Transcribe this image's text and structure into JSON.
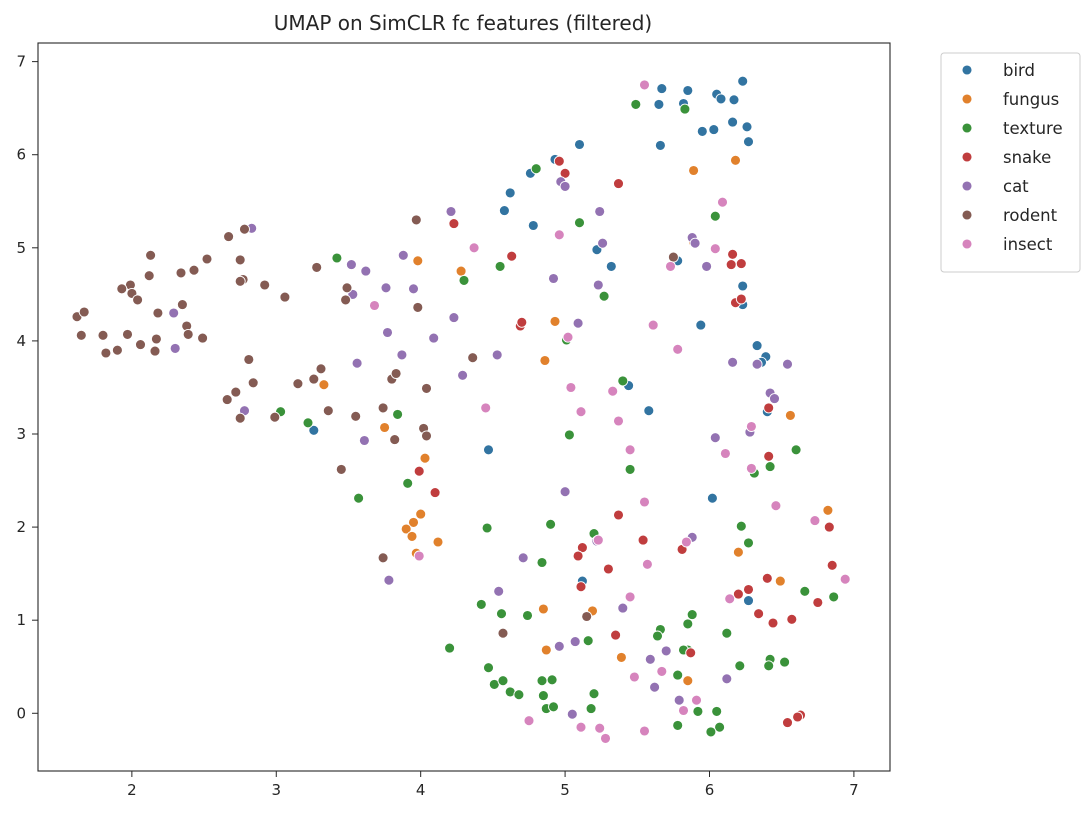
{
  "chart_data": {
    "type": "scatter",
    "title": "UMAP on SimCLR fc features (filtered)",
    "xlabel": "",
    "ylabel": "",
    "xlim": [
      1.35,
      7.25
    ],
    "ylim": [
      -0.62,
      7.2
    ],
    "x_ticks": [
      2,
      3,
      4,
      5,
      6,
      7
    ],
    "y_ticks": [
      0,
      1,
      2,
      3,
      4,
      5,
      6,
      7
    ],
    "grid": false,
    "legend_position": "outside top-right",
    "series": [
      {
        "name": "bird",
        "color": "#3274a1",
        "points": [
          [
            5.67,
            6.71
          ],
          [
            5.85,
            6.69
          ],
          [
            6.05,
            6.65
          ],
          [
            6.23,
            6.79
          ],
          [
            5.65,
            6.54
          ],
          [
            5.82,
            6.55
          ],
          [
            6.08,
            6.6
          ],
          [
            6.17,
            6.59
          ],
          [
            6.16,
            6.35
          ],
          [
            5.95,
            6.25
          ],
          [
            6.03,
            6.27
          ],
          [
            6.26,
            6.3
          ],
          [
            5.66,
            6.1
          ],
          [
            6.27,
            6.14
          ],
          [
            5.1,
            6.11
          ],
          [
            4.93,
            5.95
          ],
          [
            4.76,
            5.8
          ],
          [
            4.62,
            5.59
          ],
          [
            4.58,
            5.4
          ],
          [
            4.78,
            5.24
          ],
          [
            5.22,
            4.98
          ],
          [
            5.32,
            4.8
          ],
          [
            5.78,
            4.86
          ],
          [
            6.23,
            4.59
          ],
          [
            6.23,
            4.39
          ],
          [
            5.94,
            4.17
          ],
          [
            6.33,
            3.95
          ],
          [
            6.39,
            3.83
          ],
          [
            6.36,
            3.77
          ],
          [
            5.44,
            3.52
          ],
          [
            5.58,
            3.25
          ],
          [
            6.4,
            3.24
          ],
          [
            4.47,
            2.83
          ],
          [
            6.02,
            2.31
          ],
          [
            3.26,
            3.04
          ],
          [
            5.12,
            1.42
          ],
          [
            6.27,
            1.21
          ]
        ]
      },
      {
        "name": "fungus",
        "color": "#e1812c",
        "points": [
          [
            6.18,
            5.94
          ],
          [
            5.89,
            5.83
          ],
          [
            5.89,
            5.06
          ],
          [
            3.98,
            4.86
          ],
          [
            4.28,
            4.75
          ],
          [
            4.93,
            4.21
          ],
          [
            4.86,
            3.79
          ],
          [
            3.33,
            3.53
          ],
          [
            3.75,
            3.07
          ],
          [
            4.03,
            2.74
          ],
          [
            3.95,
            2.05
          ],
          [
            4.0,
            2.14
          ],
          [
            3.9,
            1.98
          ],
          [
            3.94,
            1.9
          ],
          [
            4.12,
            1.84
          ],
          [
            3.97,
            1.72
          ],
          [
            6.56,
            3.2
          ],
          [
            6.82,
            2.18
          ],
          [
            6.2,
            1.73
          ],
          [
            6.49,
            1.42
          ],
          [
            4.85,
            1.12
          ],
          [
            5.19,
            1.1
          ],
          [
            4.87,
            0.68
          ],
          [
            5.39,
            0.6
          ],
          [
            5.85,
            0.35
          ]
        ]
      },
      {
        "name": "texture",
        "color": "#3a923a",
        "points": [
          [
            5.49,
            6.54
          ],
          [
            5.83,
            6.49
          ],
          [
            4.8,
            5.85
          ],
          [
            5.1,
            5.27
          ],
          [
            6.04,
            5.34
          ],
          [
            3.42,
            4.89
          ],
          [
            4.55,
            4.8
          ],
          [
            4.3,
            4.65
          ],
          [
            5.27,
            4.48
          ],
          [
            5.01,
            4.01
          ],
          [
            5.4,
            3.57
          ],
          [
            3.03,
            3.24
          ],
          [
            3.84,
            3.21
          ],
          [
            3.22,
            3.12
          ],
          [
            5.03,
            2.99
          ],
          [
            6.6,
            2.83
          ],
          [
            6.42,
            2.65
          ],
          [
            5.45,
            2.62
          ],
          [
            6.31,
            2.58
          ],
          [
            3.91,
            2.47
          ],
          [
            3.57,
            2.31
          ],
          [
            4.9,
            2.03
          ],
          [
            4.46,
            1.99
          ],
          [
            5.2,
            1.93
          ],
          [
            6.22,
            2.01
          ],
          [
            6.27,
            1.83
          ],
          [
            4.84,
            1.62
          ],
          [
            6.66,
            1.31
          ],
          [
            6.86,
            1.25
          ],
          [
            4.42,
            1.17
          ],
          [
            4.56,
            1.07
          ],
          [
            4.74,
            1.05
          ],
          [
            5.88,
            1.06
          ],
          [
            5.16,
            0.78
          ],
          [
            5.66,
            0.9
          ],
          [
            5.64,
            0.83
          ],
          [
            6.12,
            0.86
          ],
          [
            5.85,
            0.96
          ],
          [
            4.2,
            0.7
          ],
          [
            5.85,
            0.68
          ],
          [
            5.82,
            0.68
          ],
          [
            6.42,
            0.58
          ],
          [
            6.41,
            0.51
          ],
          [
            6.52,
            0.55
          ],
          [
            6.21,
            0.51
          ],
          [
            4.47,
            0.49
          ],
          [
            5.78,
            0.41
          ],
          [
            4.84,
            0.35
          ],
          [
            4.91,
            0.36
          ],
          [
            4.51,
            0.31
          ],
          [
            4.57,
            0.35
          ],
          [
            4.62,
            0.23
          ],
          [
            4.68,
            0.2
          ],
          [
            5.2,
            0.21
          ],
          [
            4.85,
            0.19
          ],
          [
            4.87,
            0.05
          ],
          [
            4.92,
            0.07
          ],
          [
            5.18,
            0.05
          ],
          [
            5.92,
            0.02
          ],
          [
            6.05,
            0.02
          ],
          [
            5.78,
            -0.13
          ],
          [
            6.07,
            -0.15
          ],
          [
            6.01,
            -0.2
          ]
        ]
      },
      {
        "name": "snake",
        "color": "#c03d3e",
        "points": [
          [
            4.96,
            5.93
          ],
          [
            5.0,
            5.8
          ],
          [
            5.37,
            5.69
          ],
          [
            4.23,
            5.26
          ],
          [
            4.63,
            4.91
          ],
          [
            6.16,
            4.93
          ],
          [
            6.15,
            4.82
          ],
          [
            6.22,
            4.83
          ],
          [
            6.18,
            4.41
          ],
          [
            6.22,
            4.45
          ],
          [
            4.69,
            4.16
          ],
          [
            4.7,
            4.2
          ],
          [
            6.41,
            3.28
          ],
          [
            6.41,
            2.76
          ],
          [
            3.99,
            2.6
          ],
          [
            4.1,
            2.37
          ],
          [
            5.37,
            2.13
          ],
          [
            5.12,
            1.78
          ],
          [
            5.09,
            1.69
          ],
          [
            5.54,
            1.86
          ],
          [
            5.81,
            1.76
          ],
          [
            5.3,
            1.55
          ],
          [
            6.83,
            2.0
          ],
          [
            6.4,
            1.45
          ],
          [
            6.85,
            1.59
          ],
          [
            6.27,
            1.33
          ],
          [
            6.2,
            1.28
          ],
          [
            5.11,
            1.36
          ],
          [
            6.34,
            1.07
          ],
          [
            6.57,
            1.01
          ],
          [
            6.44,
            0.97
          ],
          [
            6.75,
            1.19
          ],
          [
            5.35,
            0.84
          ],
          [
            5.87,
            0.65
          ],
          [
            6.63,
            -0.02
          ],
          [
            6.61,
            -0.04
          ],
          [
            6.54,
            -0.1
          ]
        ]
      },
      {
        "name": "cat",
        "color": "#9372b2",
        "points": [
          [
            4.97,
            5.71
          ],
          [
            5.0,
            5.66
          ],
          [
            5.24,
            5.39
          ],
          [
            4.21,
            5.39
          ],
          [
            2.83,
            5.21
          ],
          [
            5.88,
            5.11
          ],
          [
            5.9,
            5.05
          ],
          [
            5.98,
            4.8
          ],
          [
            5.26,
            5.05
          ],
          [
            3.88,
            4.92
          ],
          [
            3.52,
            4.82
          ],
          [
            3.62,
            4.75
          ],
          [
            4.92,
            4.67
          ],
          [
            3.76,
            4.57
          ],
          [
            3.95,
            4.56
          ],
          [
            5.23,
            4.6
          ],
          [
            3.53,
            4.5
          ],
          [
            4.23,
            4.25
          ],
          [
            5.09,
            4.19
          ],
          [
            4.09,
            4.03
          ],
          [
            3.77,
            4.09
          ],
          [
            3.87,
            3.85
          ],
          [
            4.53,
            3.85
          ],
          [
            2.3,
            3.92
          ],
          [
            2.29,
            4.3
          ],
          [
            3.56,
            3.76
          ],
          [
            4.29,
            3.63
          ],
          [
            6.16,
            3.77
          ],
          [
            6.33,
            3.75
          ],
          [
            6.54,
            3.75
          ],
          [
            6.42,
            3.44
          ],
          [
            6.45,
            3.38
          ],
          [
            2.78,
            3.25
          ],
          [
            6.28,
            3.02
          ],
          [
            6.04,
            2.96
          ],
          [
            3.61,
            2.93
          ],
          [
            5.0,
            2.38
          ],
          [
            5.88,
            1.89
          ],
          [
            4.71,
            1.67
          ],
          [
            5.22,
            1.85
          ],
          [
            3.78,
            1.43
          ],
          [
            4.54,
            1.31
          ],
          [
            5.4,
            1.13
          ],
          [
            4.96,
            0.72
          ],
          [
            5.07,
            0.77
          ],
          [
            5.7,
            0.67
          ],
          [
            5.59,
            0.58
          ],
          [
            5.62,
            0.28
          ],
          [
            6.12,
            0.37
          ],
          [
            5.79,
            0.14
          ],
          [
            5.05,
            -0.01
          ]
        ]
      },
      {
        "name": "rodent",
        "color": "#845b53",
        "points": [
          [
            2.78,
            5.2
          ],
          [
            3.97,
            5.3
          ],
          [
            2.67,
            5.12
          ],
          [
            2.13,
            4.92
          ],
          [
            2.52,
            4.88
          ],
          [
            2.75,
            4.87
          ],
          [
            2.43,
            4.76
          ],
          [
            2.34,
            4.73
          ],
          [
            2.12,
            4.7
          ],
          [
            3.28,
            4.79
          ],
          [
            2.77,
            4.66
          ],
          [
            2.75,
            4.64
          ],
          [
            1.99,
            4.6
          ],
          [
            1.93,
            4.56
          ],
          [
            2.0,
            4.51
          ],
          [
            2.04,
            4.44
          ],
          [
            2.92,
            4.6
          ],
          [
            3.06,
            4.47
          ],
          [
            3.49,
            4.57
          ],
          [
            3.48,
            4.44
          ],
          [
            3.98,
            4.36
          ],
          [
            1.62,
            4.26
          ],
          [
            1.67,
            4.31
          ],
          [
            2.18,
            4.3
          ],
          [
            2.35,
            4.39
          ],
          [
            2.38,
            4.16
          ],
          [
            2.39,
            4.07
          ],
          [
            2.49,
            4.03
          ],
          [
            1.65,
            4.06
          ],
          [
            1.8,
            4.06
          ],
          [
            1.97,
            4.07
          ],
          [
            2.06,
            3.96
          ],
          [
            2.17,
            4.02
          ],
          [
            1.9,
            3.9
          ],
          [
            1.82,
            3.87
          ],
          [
            2.16,
            3.89
          ],
          [
            2.81,
            3.8
          ],
          [
            4.36,
            3.82
          ],
          [
            3.31,
            3.7
          ],
          [
            3.26,
            3.59
          ],
          [
            3.15,
            3.54
          ],
          [
            2.84,
            3.55
          ],
          [
            3.8,
            3.59
          ],
          [
            3.83,
            3.65
          ],
          [
            4.04,
            3.49
          ],
          [
            2.72,
            3.45
          ],
          [
            2.66,
            3.37
          ],
          [
            2.75,
            3.17
          ],
          [
            3.36,
            3.25
          ],
          [
            3.74,
            3.28
          ],
          [
            2.99,
            3.18
          ],
          [
            3.55,
            3.19
          ],
          [
            4.02,
            3.06
          ],
          [
            4.04,
            2.98
          ],
          [
            3.82,
            2.94
          ],
          [
            3.45,
            2.62
          ],
          [
            3.74,
            1.67
          ],
          [
            5.15,
            1.04
          ],
          [
            4.57,
            0.86
          ],
          [
            5.75,
            4.9
          ]
        ]
      },
      {
        "name": "insect",
        "color": "#d684bd",
        "points": [
          [
            5.55,
            6.75
          ],
          [
            6.09,
            5.49
          ],
          [
            4.96,
            5.14
          ],
          [
            4.37,
            5.0
          ],
          [
            6.04,
            4.99
          ],
          [
            5.73,
            4.8
          ],
          [
            3.68,
            4.38
          ],
          [
            5.61,
            4.17
          ],
          [
            5.02,
            4.04
          ],
          [
            5.78,
            3.91
          ],
          [
            5.04,
            3.5
          ],
          [
            5.33,
            3.46
          ],
          [
            4.45,
            3.28
          ],
          [
            5.11,
            3.24
          ],
          [
            5.37,
            3.14
          ],
          [
            5.45,
            2.83
          ],
          [
            6.11,
            2.79
          ],
          [
            6.29,
            3.08
          ],
          [
            6.29,
            2.63
          ],
          [
            6.46,
            2.23
          ],
          [
            5.55,
            2.27
          ],
          [
            6.73,
            2.07
          ],
          [
            5.23,
            1.86
          ],
          [
            5.84,
            1.84
          ],
          [
            5.57,
            1.6
          ],
          [
            6.94,
            1.44
          ],
          [
            6.14,
            1.23
          ],
          [
            5.45,
            1.25
          ],
          [
            3.99,
            1.69
          ],
          [
            5.67,
            0.45
          ],
          [
            5.48,
            0.39
          ],
          [
            5.91,
            0.14
          ],
          [
            5.82,
            0.03
          ],
          [
            4.75,
            -0.08
          ],
          [
            5.11,
            -0.15
          ],
          [
            5.24,
            -0.16
          ],
          [
            5.55,
            -0.19
          ],
          [
            5.28,
            -0.27
          ]
        ]
      }
    ]
  }
}
